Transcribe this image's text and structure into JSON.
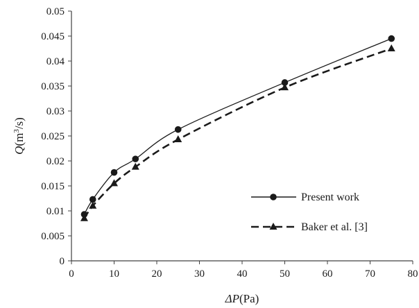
{
  "chart_data": {
    "type": "line",
    "xlabel": {
      "var": "ΔP",
      "unit": "(Pa)"
    },
    "ylabel": {
      "var": "Q",
      "unit_pre": "(m",
      "unit_sup": "3",
      "unit_post": "/s)"
    },
    "xlim": [
      0,
      80
    ],
    "ylim": [
      0,
      0.05
    ],
    "x_ticks": [
      "0",
      "10",
      "20",
      "30",
      "40",
      "50",
      "60",
      "70",
      "80"
    ],
    "y_ticks": [
      "0",
      "0.005",
      "0.01",
      "0.015",
      "0.02",
      "0.025",
      "0.03",
      "0.035",
      "0.04",
      "0.045",
      "0.05"
    ],
    "grid": false,
    "legend_position": "bottom-right",
    "series": [
      {
        "name": "Present work",
        "marker": "circle",
        "line": "solid",
        "color": "#1a1a1a",
        "x": [
          3,
          5,
          10,
          15,
          25,
          50,
          75
        ],
        "y": [
          0.0093,
          0.0123,
          0.0177,
          0.0204,
          0.0263,
          0.0357,
          0.0445
        ]
      },
      {
        "name": "Baker et al. [3]",
        "marker": "triangle",
        "line": "dashed",
        "color": "#1a1a1a",
        "x": [
          3,
          5,
          10,
          15,
          25,
          50,
          75
        ],
        "y": [
          0.0085,
          0.011,
          0.0155,
          0.0188,
          0.0243,
          0.0347,
          0.0425
        ]
      }
    ]
  }
}
